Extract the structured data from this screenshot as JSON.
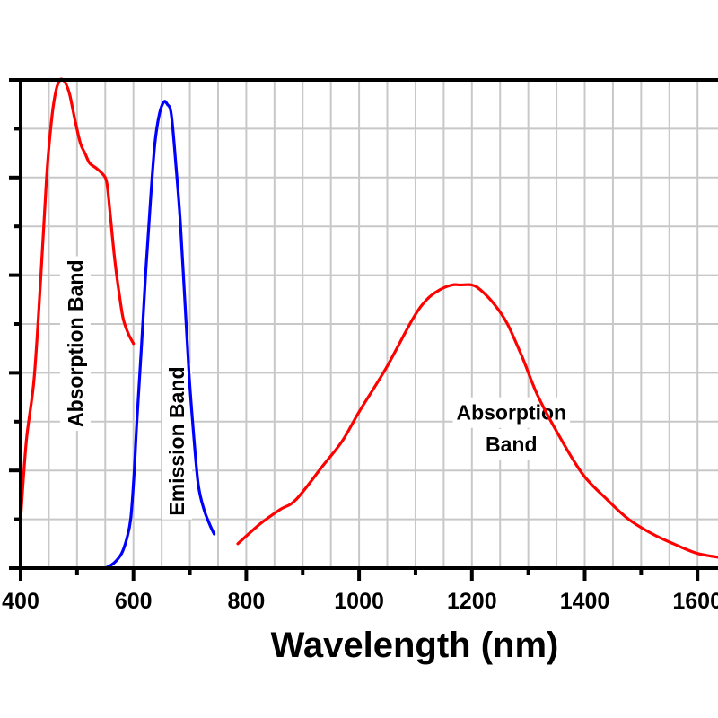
{
  "chart_data": {
    "type": "line",
    "title": "",
    "xlabel": "Wavelength (nm)",
    "ylabel": "",
    "xlim": [
      400,
      1650
    ],
    "ylim": [
      0,
      1
    ],
    "grid": true,
    "x_ticks": [
      400,
      600,
      800,
      1000,
      1200,
      1400,
      1600
    ],
    "x_tick_labels": [
      "400",
      "600",
      "800",
      "1000",
      "1200",
      "1400",
      "1600"
    ],
    "x_minor_step": 100,
    "x_grid_step": 50,
    "y_major_count": 5,
    "y_grid_count": 10,
    "colors": {
      "absorption": "#ff0000",
      "emission": "#0000ff",
      "grid": "#c8c8c8",
      "axis": "#000000"
    },
    "series": [
      {
        "name": "Absorption Band (visible)",
        "color": "#ff0000",
        "x": [
          400,
          410,
          424,
          436,
          446,
          455,
          463,
          470,
          475,
          481,
          487,
          496,
          506,
          514,
          522,
          533,
          543,
          550,
          554,
          560,
          567,
          575,
          582,
          591,
          600
        ],
        "y": [
          0.1,
          0.26,
          0.39,
          0.6,
          0.8,
          0.92,
          0.98,
          1.0,
          1.0,
          0.99,
          0.97,
          0.92,
          0.87,
          0.85,
          0.83,
          0.82,
          0.81,
          0.8,
          0.78,
          0.71,
          0.63,
          0.56,
          0.51,
          0.48,
          0.46
        ]
      },
      {
        "name": "Emission Band",
        "color": "#0000ff",
        "x": [
          550,
          565,
          579,
          588,
          595,
          601,
          606,
          614,
          622,
          630,
          638,
          646,
          654,
          660,
          667,
          675,
          683,
          691,
          699,
          707,
          715,
          725,
          735,
          743
        ],
        "y": [
          0.0,
          0.01,
          0.03,
          0.06,
          0.1,
          0.19,
          0.3,
          0.45,
          0.61,
          0.75,
          0.87,
          0.93,
          0.955,
          0.95,
          0.93,
          0.83,
          0.71,
          0.55,
          0.39,
          0.27,
          0.17,
          0.12,
          0.09,
          0.07
        ]
      },
      {
        "name": "Absorption Band (NIR)",
        "color": "#ff0000",
        "x": [
          785,
          824,
          860,
          888,
          936,
          970,
          1000,
          1048,
          1095,
          1120,
          1143,
          1165,
          1180,
          1200,
          1215,
          1240,
          1263,
          1290,
          1318,
          1360,
          1398,
          1440,
          1478,
          1520,
          1557,
          1600,
          1650
        ],
        "y": [
          0.05,
          0.09,
          0.12,
          0.14,
          0.21,
          0.26,
          0.32,
          0.41,
          0.51,
          0.55,
          0.57,
          0.58,
          0.58,
          0.58,
          0.57,
          0.54,
          0.5,
          0.43,
          0.35,
          0.26,
          0.19,
          0.14,
          0.1,
          0.07,
          0.05,
          0.03,
          0.02
        ]
      }
    ],
    "annotations": [
      {
        "text": "Absorption Band",
        "x": 500,
        "y": 0.46,
        "rotation": -90
      },
      {
        "text": "Emission Band",
        "x": 680,
        "y": 0.26,
        "rotation": -90
      },
      {
        "text": "Absorption",
        "x": 1270,
        "y": 0.315,
        "rotation": 0
      },
      {
        "text": "Band",
        "x": 1270,
        "y": 0.25,
        "rotation": 0
      }
    ]
  }
}
